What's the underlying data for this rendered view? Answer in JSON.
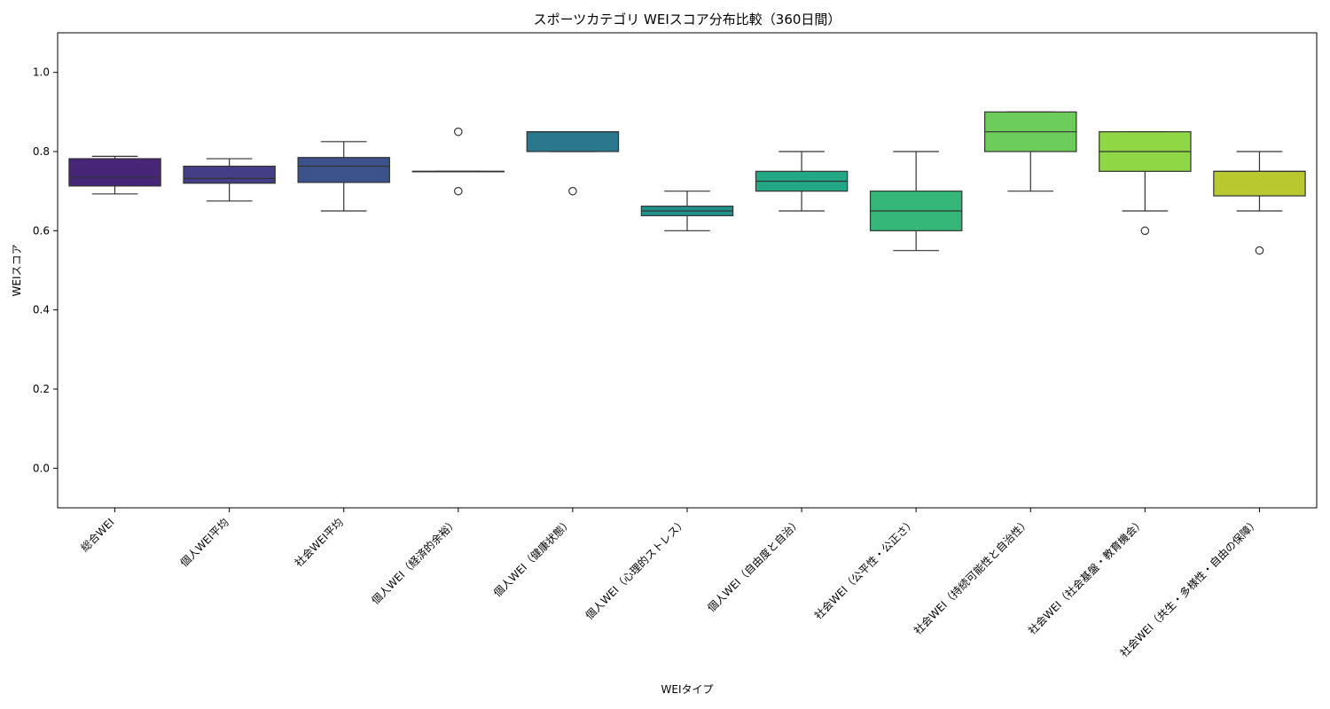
{
  "chart_data": {
    "type": "box",
    "title": "スポーツカテゴリ WEIスコア分布比較（360日間）",
    "xlabel": "WEIタイプ",
    "ylabel": "WEIスコア",
    "ylim": [
      -0.1,
      1.1
    ],
    "yticks": [
      "0.0",
      "0.2",
      "0.4",
      "0.6",
      "0.8",
      "1.0"
    ],
    "grid": false,
    "legend": "none",
    "categories": [
      "総合WEI",
      "個人WEI平均",
      "社会WEI平均",
      "個人WEI（経済的余裕）",
      "個人WEI（健康状態）",
      "個人WEI（心理的ストレス）",
      "個人WEI（自由度と自治）",
      "社会WEI（公平性・公正さ）",
      "社会WEI（持続可能性と自治性）",
      "社会WEI（社会基盤・教育機会）",
      "社会WEI（共生・多様性・自由の保障）"
    ],
    "boxes": [
      {
        "whisker_low": 0.693,
        "q1": 0.713,
        "median": 0.735,
        "q3": 0.782,
        "whisker_high": 0.788,
        "outliers": [],
        "color": "#482677"
      },
      {
        "whisker_low": 0.675,
        "q1": 0.72,
        "median": 0.732,
        "q3": 0.763,
        "whisker_high": 0.782,
        "outliers": [],
        "color": "#433e85"
      },
      {
        "whisker_low": 0.65,
        "q1": 0.722,
        "median": 0.763,
        "q3": 0.785,
        "whisker_high": 0.825,
        "outliers": [],
        "color": "#3b528b"
      },
      {
        "whisker_low": 0.75,
        "q1": 0.75,
        "median": 0.75,
        "q3": 0.75,
        "whisker_high": 0.75,
        "outliers": [
          0.85,
          0.7
        ],
        "color": "#2c728e"
      },
      {
        "whisker_low": 0.8,
        "q1": 0.8,
        "median": 0.85,
        "q3": 0.85,
        "whisker_high": 0.85,
        "outliers": [
          0.7
        ],
        "color": "#2a788e"
      },
      {
        "whisker_low": 0.6,
        "q1": 0.638,
        "median": 0.65,
        "q3": 0.662,
        "whisker_high": 0.7,
        "outliers": [],
        "color": "#21918c"
      },
      {
        "whisker_low": 0.65,
        "q1": 0.7,
        "median": 0.725,
        "q3": 0.75,
        "whisker_high": 0.8,
        "outliers": [],
        "color": "#22a884"
      },
      {
        "whisker_low": 0.55,
        "q1": 0.6,
        "median": 0.65,
        "q3": 0.7,
        "whisker_high": 0.8,
        "outliers": [],
        "color": "#35b779"
      },
      {
        "whisker_low": 0.7,
        "q1": 0.8,
        "median": 0.85,
        "q3": 0.9,
        "whisker_high": 0.9,
        "outliers": [],
        "color": "#6ccd5a"
      },
      {
        "whisker_low": 0.65,
        "q1": 0.75,
        "median": 0.8,
        "q3": 0.85,
        "whisker_high": 0.85,
        "outliers": [
          0.6
        ],
        "color": "#8fd744"
      },
      {
        "whisker_low": 0.65,
        "q1": 0.688,
        "median": 0.75,
        "q3": 0.75,
        "whisker_high": 0.8,
        "outliers": [
          0.55
        ],
        "color": "#b8c92f"
      }
    ]
  }
}
